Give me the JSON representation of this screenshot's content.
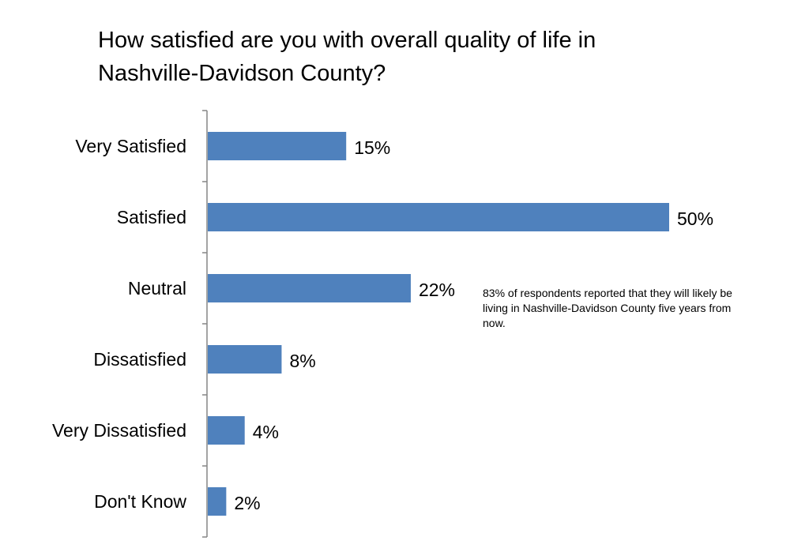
{
  "chart_data": {
    "type": "bar",
    "orientation": "horizontal",
    "title": "How satisfied are you with overall quality of life in Nashville-Davidson County?",
    "title_lines": [
      "How satisfied are you with overall quality of life in",
      "Nashville-Davidson County?"
    ],
    "categories": [
      "Very Satisfied",
      "Satisfied",
      "Neutral",
      "Dissatisfied",
      "Very Dissatisfied",
      "Don't Know"
    ],
    "values": [
      15,
      50,
      22,
      8,
      4,
      2
    ],
    "data_labels": [
      "15%",
      "50%",
      "22%",
      "8%",
      "4%",
      "2%"
    ],
    "unit": "%",
    "xlim": [
      0,
      50
    ],
    "bar_color": "#4F81BD",
    "axis_color": "#868686",
    "grid": false,
    "legend": "none",
    "annotation": "83% of respondents reported that they will likely be living in Nashville-Davidson County five years from now."
  }
}
